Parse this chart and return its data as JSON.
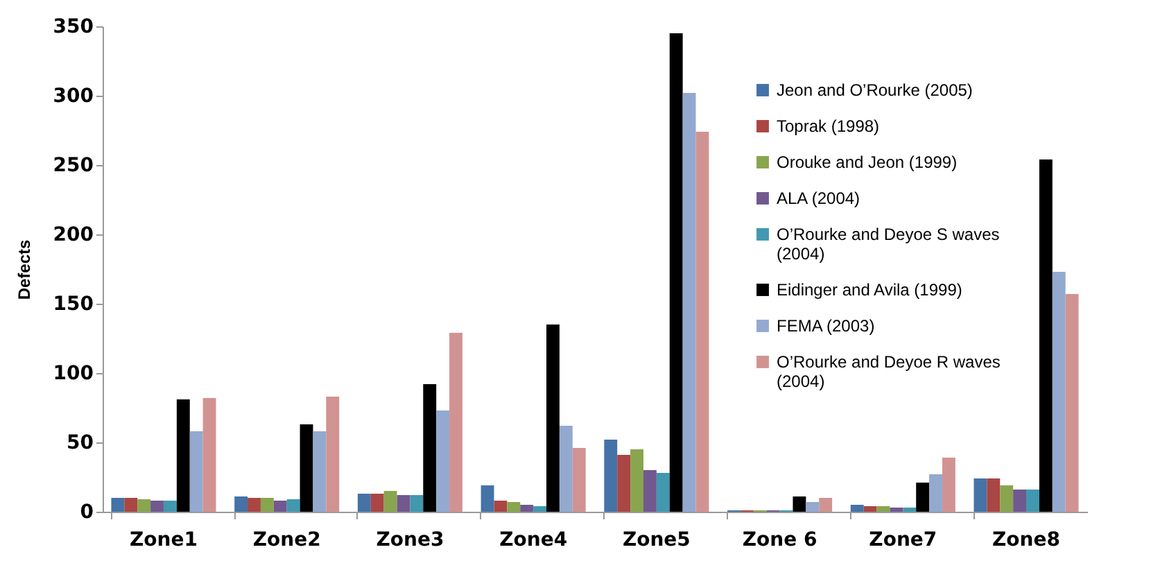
{
  "chart_data": {
    "type": "bar",
    "ylabel": "Defects",
    "categories": [
      "Zone1",
      "Zone2",
      "Zone3",
      "Zone4",
      "Zone5",
      "Zone 6",
      "Zone7",
      "Zone8"
    ],
    "series": [
      {
        "name": "Jeon and O’Rourke (2005)",
        "color": "#4572a7",
        "values": [
          10,
          11,
          13,
          19,
          52,
          1,
          5,
          24
        ]
      },
      {
        "name": "Toprak (1998)",
        "color": "#aa4643",
        "values": [
          10,
          10,
          13,
          8,
          41,
          1,
          4,
          24
        ]
      },
      {
        "name": "Orouke and Jeon (1999)",
        "color": "#89a54e",
        "values": [
          9,
          10,
          15,
          7,
          45,
          1,
          4,
          19
        ]
      },
      {
        "name": "ALA (2004)",
        "color": "#71588f",
        "values": [
          8,
          8,
          12,
          5,
          30,
          1,
          3,
          16
        ]
      },
      {
        "name": "O’Rourke and Deyoe S waves (2004)",
        "color": "#4198af",
        "values": [
          8,
          9,
          12,
          4,
          28,
          1,
          3,
          16
        ]
      },
      {
        "name": "Eidinger and Avila (1999)",
        "color": "#000000",
        "values": [
          81,
          63,
          92,
          135,
          345,
          11,
          21,
          254
        ]
      },
      {
        "name": "FEMA (2003)",
        "color": "#93a9cf",
        "values": [
          58,
          58,
          73,
          62,
          302,
          7,
          27,
          173
        ]
      },
      {
        "name": "O’Rourke and Deyoe R waves (2004)",
        "color": "#d19392",
        "values": [
          82,
          83,
          129,
          46,
          274,
          10,
          39,
          157
        ]
      }
    ],
    "ylim": [
      0,
      350
    ],
    "yticks": [
      0,
      50,
      100,
      150,
      200,
      250,
      300,
      350
    ],
    "grid": false,
    "legend": "right"
  }
}
